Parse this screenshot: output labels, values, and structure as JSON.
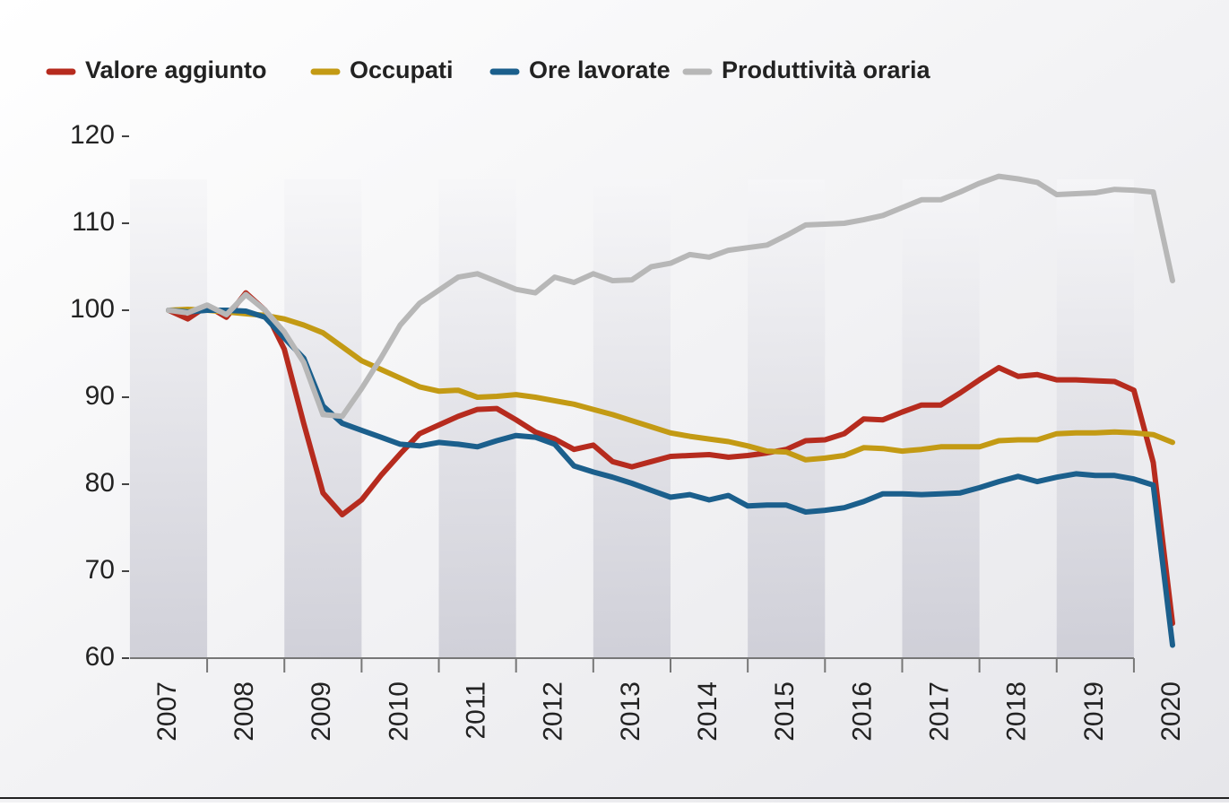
{
  "chart_data": {
    "type": "line",
    "x": [
      2007,
      2007.25,
      2007.5,
      2007.75,
      2008,
      2008.25,
      2008.5,
      2008.75,
      2009,
      2009.25,
      2009.5,
      2009.75,
      2010,
      2010.25,
      2010.5,
      2010.75,
      2011,
      2011.25,
      2011.5,
      2011.75,
      2012,
      2012.25,
      2012.5,
      2012.75,
      2013,
      2013.25,
      2013.5,
      2013.75,
      2014,
      2014.25,
      2014.5,
      2014.75,
      2015,
      2015.25,
      2015.5,
      2015.75,
      2016,
      2016.25,
      2016.5,
      2016.75,
      2017,
      2017.25,
      2017.5,
      2017.75,
      2018,
      2018.25,
      2018.5,
      2018.75,
      2019,
      2019.25,
      2019.5,
      2019.75,
      2020
    ],
    "xlim": [
      2007,
      2020
    ],
    "xticks": [
      2007,
      2008,
      2009,
      2010,
      2011,
      2012,
      2013,
      2014,
      2015,
      2016,
      2017,
      2018,
      2019,
      2020
    ],
    "ylim": [
      60,
      120
    ],
    "yticks": [
      60,
      70,
      80,
      90,
      100,
      110,
      120
    ],
    "series": [
      {
        "name": "Valore aggiunto",
        "color": "#b62b1e",
        "values": [
          100,
          99,
          100.5,
          99.2,
          102,
          100,
          95.5,
          87,
          79,
          76.5,
          78.2,
          81,
          83.5,
          85.8,
          86.8,
          87.8,
          88.6,
          88.7,
          87.4,
          86,
          85.2,
          84,
          84.5,
          82.6,
          82,
          82.6,
          83.2,
          83.3,
          83.4,
          83.1,
          83.3,
          83.6,
          84,
          85,
          85.1,
          85.8,
          87.5,
          87.4,
          88.3,
          89.1,
          89.1,
          90.5,
          92,
          93.4,
          92.4,
          92.6,
          92,
          92,
          91.9,
          91.8,
          90.8,
          82.5,
          64
        ]
      },
      {
        "name": "Occupati",
        "color": "#c39a14",
        "values": [
          100,
          100.1,
          100,
          99.8,
          99.6,
          99.4,
          99,
          98.3,
          97.4,
          95.8,
          94.2,
          93.2,
          92.2,
          91.2,
          90.7,
          90.8,
          90,
          90.1,
          90.3,
          90,
          89.6,
          89.2,
          88.6,
          88,
          87.3,
          86.6,
          85.9,
          85.5,
          85.2,
          84.9,
          84.4,
          83.8,
          83.7,
          82.8,
          83,
          83.3,
          84.2,
          84.1,
          83.8,
          84,
          84.3,
          84.3,
          84.3,
          85,
          85.1,
          85.1,
          85.8,
          85.9,
          85.9,
          86,
          85.9,
          85.7,
          84.8
        ]
      },
      {
        "name": "Ore lavorate",
        "color": "#1b5f8c",
        "values": [
          100,
          99.8,
          100,
          100,
          99.9,
          99.2,
          96.8,
          94.5,
          89,
          87,
          86.2,
          85.4,
          84.6,
          84.4,
          84.8,
          84.6,
          84.3,
          85,
          85.6,
          85.4,
          84.6,
          82.1,
          81.4,
          80.8,
          80.1,
          79.3,
          78.5,
          78.8,
          78.2,
          78.7,
          77.5,
          77.6,
          77.6,
          76.8,
          77,
          77.3,
          78,
          78.9,
          78.9,
          78.8,
          78.9,
          79,
          79.6,
          80.3,
          80.9,
          80.3,
          80.8,
          81.2,
          81,
          81,
          80.6,
          79.9,
          61.5
        ]
      },
      {
        "name": "Produttività oraria",
        "color": "#b7b7b7",
        "values": [
          100,
          99.7,
          100.6,
          99.5,
          101.8,
          100,
          97.5,
          94,
          88,
          87.8,
          91,
          94.5,
          98.3,
          100.8,
          102.3,
          103.8,
          104.2,
          103.3,
          102.4,
          102,
          103.8,
          103.2,
          104.2,
          103.4,
          103.5,
          105,
          105.4,
          106.4,
          106.1,
          106.9,
          107.2,
          107.5,
          108.6,
          109.8,
          109.9,
          110,
          110.4,
          110.9,
          111.8,
          112.7,
          112.7,
          113.6,
          114.6,
          115.4,
          115.1,
          114.7,
          113.3,
          113.4,
          113.5,
          113.9,
          113.8,
          113.6,
          103.4
        ]
      }
    ]
  }
}
